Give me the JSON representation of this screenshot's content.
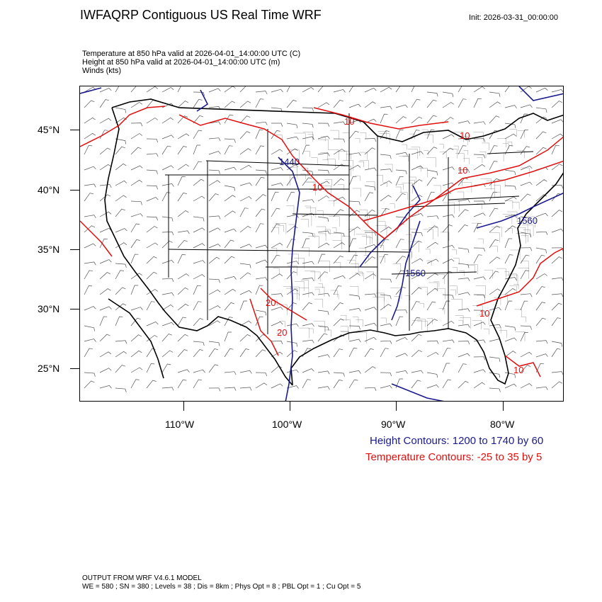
{
  "header": {
    "title": "IWFAQRP Contiguous US Real Time WRF",
    "init": "Init: 2026-03-31_00:00:00"
  },
  "fields": [
    "Temperature at 850 hPa valid at 2026-04-01_14:00:00 UTC   (C)",
    "Height at 850 hPa valid at 2026-04-01_14:00:00 UTC   (m)",
    "Winds   (kts)"
  ],
  "axes": {
    "lat_labels": [
      "45°N",
      "40°N",
      "35°N",
      "30°N",
      "25°N"
    ],
    "lon_labels": [
      "110°W",
      "100°W",
      "90°W",
      "80°W"
    ]
  },
  "contour_labels": {
    "height": [
      "1440",
      "1560",
      "1560"
    ],
    "temperature": [
      "10",
      "10",
      "10",
      "10",
      "10",
      "20",
      "20",
      "10"
    ]
  },
  "legend": {
    "height": "Height Contours: 1200 to 1740 by 60",
    "temperature": "Temperature Contours: -25 to 35 by 5"
  },
  "footer": {
    "line1": "OUTPUT FROM WRF V4.6.1 MODEL",
    "line2": "WE = 580 ; SN = 380 ; Levels = 38 ; Dis = 8km ; Phys Opt = 8 ; PBL Opt = 1 ; Cu Opt = 5"
  },
  "colors": {
    "height_contour": "#1a1a8c",
    "temperature_contour": "#e01010",
    "map_lines": "#000000"
  }
}
